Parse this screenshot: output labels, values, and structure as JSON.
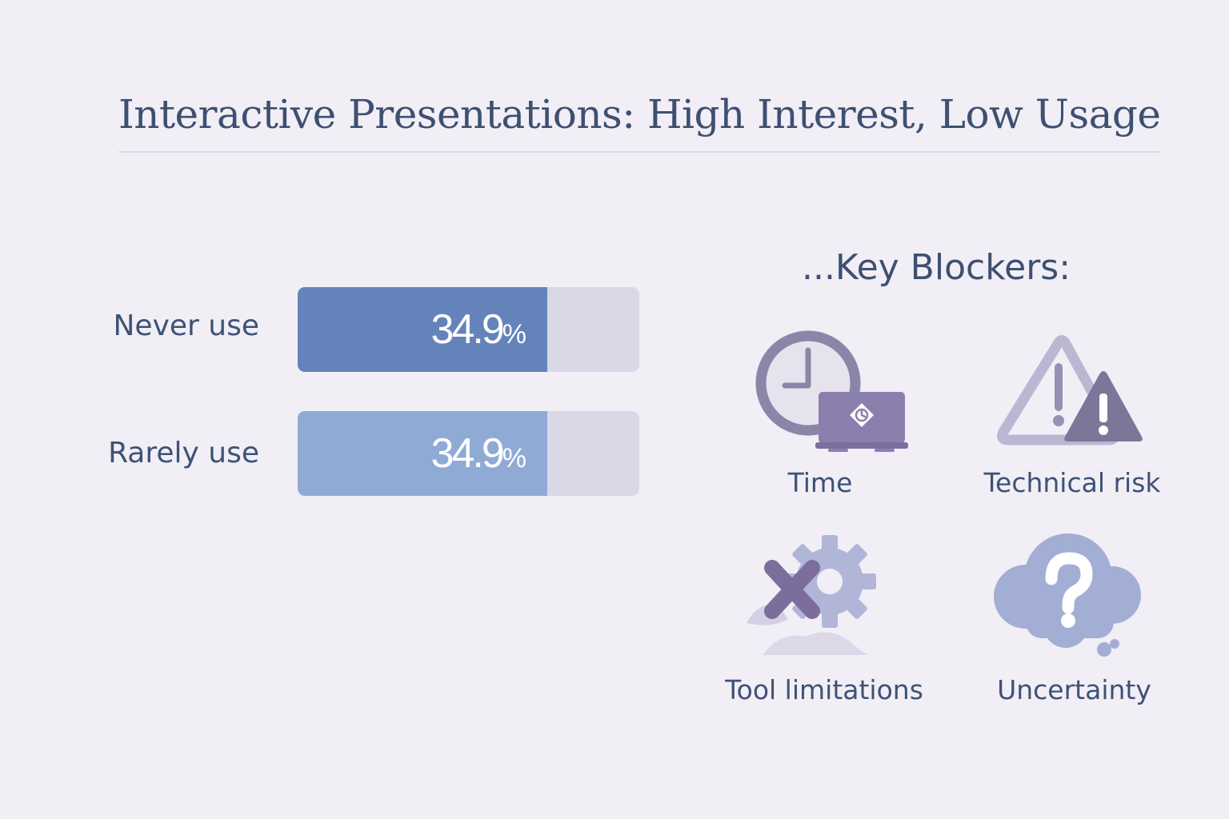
{
  "title": "Interactive Presentations: High Interest, Low Usage",
  "chart_data": {
    "type": "bar",
    "orientation": "horizontal",
    "categories": [
      "Never use",
      "Rarely use"
    ],
    "values": [
      34.9,
      34.9
    ],
    "value_labels": [
      "34.9",
      "34.9"
    ],
    "unit": "%",
    "xlim": [
      0,
      47.8
    ],
    "colors": [
      "#6483bb",
      "#8fabd5"
    ],
    "track_color": "#d9d8e6"
  },
  "blockers": {
    "heading": "...Key Blockers:",
    "items": [
      {
        "label": "Time",
        "icon": "clock-laptop-icon"
      },
      {
        "label": "Technical risk",
        "icon": "warning-triangles-icon"
      },
      {
        "label": "Tool limitations",
        "icon": "gear-x-icon"
      },
      {
        "label": "Uncertainty",
        "icon": "cloud-question-icon"
      }
    ]
  }
}
